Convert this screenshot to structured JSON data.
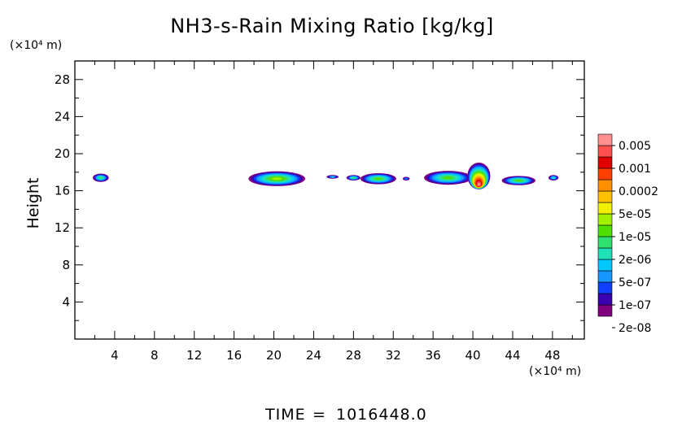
{
  "chart_data": {
    "type": "heatmap",
    "title": "NH3-s-Rain Mixing Ratio [kg/kg]",
    "ylabel": "Height",
    "xlabel": "",
    "y_unit": "(×10⁴ m)",
    "x_unit": "(×10⁴ m)",
    "xlim": [
      0,
      51.2
    ],
    "ylim": [
      0,
      30
    ],
    "x_ticks": [
      "4",
      "8",
      "12",
      "16",
      "20",
      "24",
      "28",
      "32",
      "36",
      "40",
      "44",
      "48"
    ],
    "y_ticks": [
      "4",
      "8",
      "12",
      "16",
      "20",
      "24",
      "28"
    ],
    "colorbar": {
      "labels": [
        "0.005",
        "0.001",
        "0.0002",
        "5e-05",
        "1e-05",
        "2e-06",
        "5e-07",
        "1e-07",
        "2e-08"
      ],
      "colors": [
        "#800080",
        "#3a00b0",
        "#1040ff",
        "#1898ff",
        "#00c8ff",
        "#20e0b8",
        "#30e070",
        "#50e000",
        "#a0f000",
        "#f0f000",
        "#ffc000",
        "#ff9000",
        "#ff4000",
        "#e00000",
        "#ff5050",
        "#ff9090"
      ]
    },
    "blobs": [
      {
        "x": 2.6,
        "y": 17.4,
        "w": 1.6,
        "h": 0.9,
        "peak": 6
      },
      {
        "x": 20.3,
        "y": 17.3,
        "w": 5.7,
        "h": 1.6,
        "peak": 8
      },
      {
        "x": 25.9,
        "y": 17.5,
        "w": 1.2,
        "h": 0.4,
        "peak": 4
      },
      {
        "x": 28.0,
        "y": 17.4,
        "w": 1.4,
        "h": 0.6,
        "peak": 6
      },
      {
        "x": 30.5,
        "y": 17.3,
        "w": 3.6,
        "h": 1.2,
        "peak": 7
      },
      {
        "x": 33.3,
        "y": 17.3,
        "w": 0.7,
        "h": 0.4,
        "peak": 3
      },
      {
        "x": 37.5,
        "y": 17.4,
        "w": 4.8,
        "h": 1.5,
        "peak": 7
      },
      {
        "x": 40.6,
        "y": 17.6,
        "w": 2.3,
        "h": 2.9,
        "peak": 15
      },
      {
        "x": 44.6,
        "y": 17.1,
        "w": 3.4,
        "h": 1.0,
        "peak": 7
      },
      {
        "x": 48.1,
        "y": 17.4,
        "w": 1.0,
        "h": 0.6,
        "peak": 5
      }
    ]
  },
  "footer": {
    "time_label": "TIME",
    "equals": "=",
    "time_value": "1016448.0"
  }
}
